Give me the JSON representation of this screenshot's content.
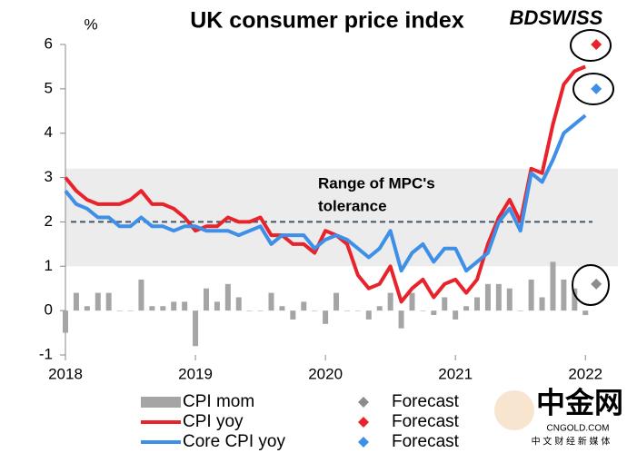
{
  "chart_data": {
    "type": "bar_line",
    "title": "UK consumer price index",
    "y_unit": "%",
    "logo": "BDSWISS",
    "watermark": {
      "name": "中金网",
      "site": "CNGOLD.COM",
      "tagline": "中 文 财 经 新 媒 体"
    },
    "annotation": [
      "Range of MPC's",
      "tolerance"
    ],
    "tolerance_band": [
      1,
      3.2
    ],
    "target": 2,
    "xlim": [
      2018,
      2022.25
    ],
    "xticks": [
      2018,
      2019,
      2020,
      2021,
      2022
    ],
    "ylim": [
      -1,
      6
    ],
    "yticks": [
      -1,
      0,
      1,
      2,
      3,
      4,
      5,
      6
    ],
    "x": [
      2018,
      2018.0833,
      2018.1667,
      2018.25,
      2018.3333,
      2018.4167,
      2018.5,
      2018.5833,
      2018.6667,
      2018.75,
      2018.8333,
      2018.9167,
      2019,
      2019.0833,
      2019.1667,
      2019.25,
      2019.3333,
      2019.4167,
      2019.5,
      2019.5833,
      2019.6667,
      2019.75,
      2019.8333,
      2019.9167,
      2020,
      2020.0833,
      2020.1667,
      2020.25,
      2020.3333,
      2020.4167,
      2020.5,
      2020.5833,
      2020.6667,
      2020.75,
      2020.8333,
      2020.9167,
      2021,
      2021.0833,
      2021.1667,
      2021.25,
      2021.3333,
      2021.4167,
      2021.5,
      2021.5833,
      2021.6667,
      2021.75,
      2021.8333,
      2021.9167,
      2022
    ],
    "series": [
      {
        "name": "CPI mom",
        "kind": "bar",
        "color": "#a5a5a5",
        "values": [
          -0.5,
          0.4,
          0.1,
          0.4,
          0.4,
          0.0,
          0.0,
          0.7,
          0.1,
          0.1,
          0.2,
          0.2,
          -0.8,
          0.5,
          0.2,
          0.6,
          0.3,
          0.0,
          0.0,
          0.4,
          0.1,
          -0.2,
          0.2,
          0.0,
          -0.3,
          0.4,
          0.0,
          0.0,
          -0.2,
          0.1,
          0.4,
          -0.4,
          0.4,
          0.0,
          -0.1,
          0.3,
          -0.2,
          0.1,
          0.3,
          0.6,
          0.6,
          0.5,
          0.0,
          0.7,
          0.3,
          1.1,
          0.7,
          0.5,
          -0.1
        ]
      },
      {
        "name": "CPI yoy",
        "kind": "line",
        "color": "#e8232b",
        "values": [
          3.0,
          2.7,
          2.5,
          2.4,
          2.4,
          2.4,
          2.5,
          2.7,
          2.4,
          2.4,
          2.3,
          2.1,
          1.8,
          1.9,
          1.9,
          2.1,
          2.0,
          2.0,
          2.1,
          1.7,
          1.7,
          1.5,
          1.5,
          1.3,
          1.8,
          1.7,
          1.5,
          0.8,
          0.5,
          0.6,
          1.0,
          0.2,
          0.5,
          0.7,
          0.3,
          0.6,
          0.7,
          0.4,
          0.7,
          1.5,
          2.1,
          2.5,
          2.0,
          3.2,
          3.1,
          4.2,
          5.1,
          5.4,
          5.5
        ]
      },
      {
        "name": "Core CPI yoy",
        "kind": "line",
        "color": "#3d8fe8",
        "values": [
          2.7,
          2.4,
          2.3,
          2.1,
          2.1,
          1.9,
          1.9,
          2.1,
          1.9,
          1.9,
          1.8,
          1.9,
          1.9,
          1.8,
          1.8,
          1.8,
          1.7,
          1.8,
          1.9,
          1.5,
          1.7,
          1.7,
          1.7,
          1.4,
          1.6,
          1.7,
          1.6,
          1.4,
          1.2,
          1.4,
          1.8,
          0.9,
          1.3,
          1.5,
          1.1,
          1.4,
          1.4,
          0.9,
          1.1,
          1.3,
          2.0,
          2.3,
          1.8,
          3.1,
          2.9,
          3.4,
          4.0,
          4.2,
          4.4
        ]
      },
      {
        "name": "Forecast",
        "kind": "marker",
        "color": "#8c8c8c",
        "x": [
          2022.0833
        ],
        "values": [
          0.6
        ]
      },
      {
        "name": "Forecast",
        "kind": "marker",
        "color": "#e8232b",
        "x": [
          2022.0833
        ],
        "values": [
          6
        ]
      },
      {
        "name": "Forecast",
        "kind": "marker",
        "color": "#3d8fe8",
        "x": [
          2022.0833
        ],
        "values": [
          5
        ]
      }
    ]
  }
}
